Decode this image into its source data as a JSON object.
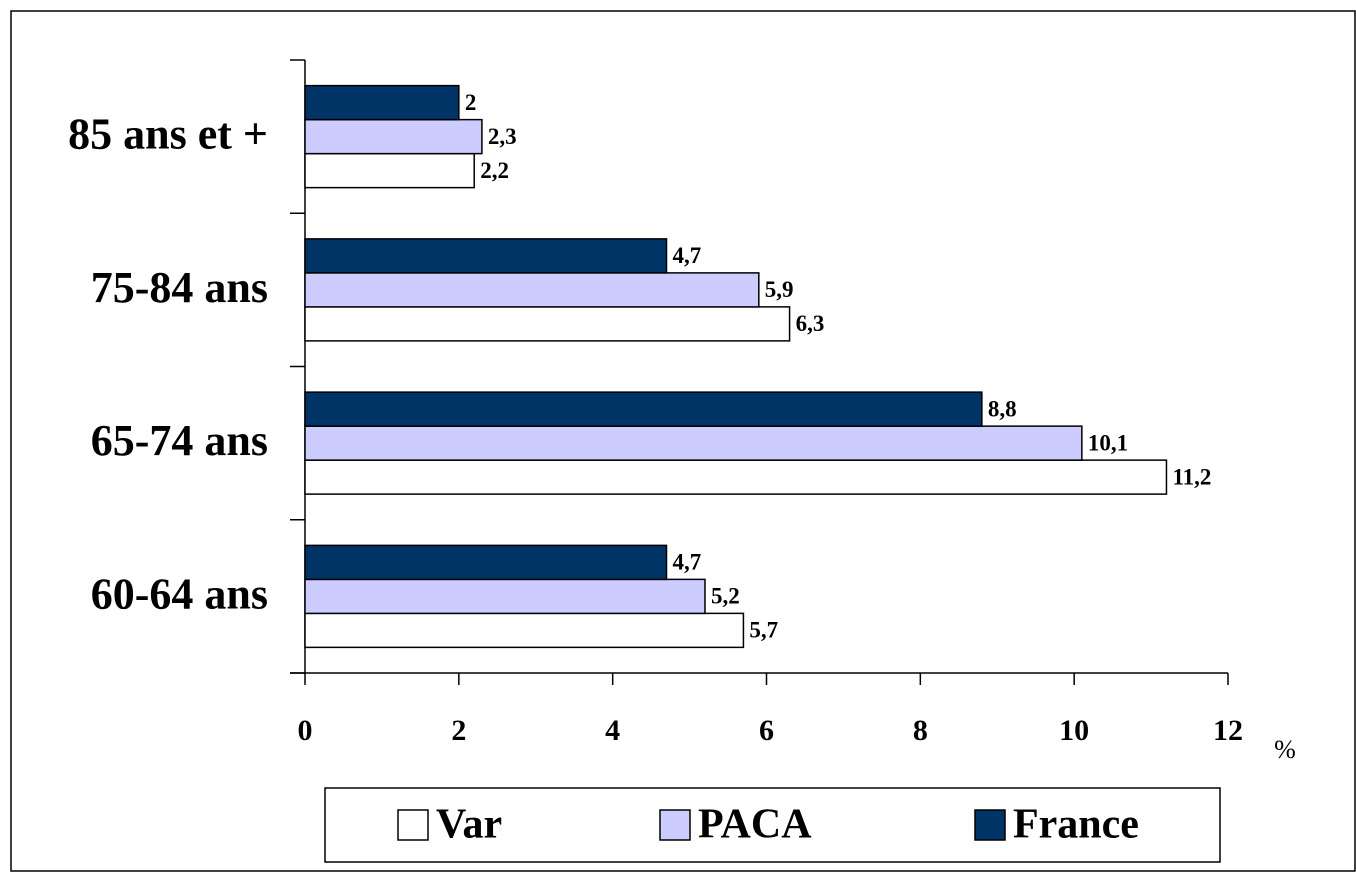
{
  "chart_data": {
    "type": "hbar",
    "categories": [
      "60-64 ans",
      "65-74 ans",
      "75-84 ans",
      "85 ans et +"
    ],
    "series": [
      {
        "name": "Var",
        "color": "#ffffff",
        "values": [
          5.7,
          11.2,
          6.3,
          2.2
        ],
        "value_labels": [
          "5,7",
          "11,2",
          "6,3",
          "2,2"
        ]
      },
      {
        "name": "PACA",
        "color": "#ccccff",
        "values": [
          5.2,
          10.1,
          5.9,
          2.3
        ],
        "value_labels": [
          "5,2",
          "10,1",
          "5,9",
          "2,3"
        ]
      },
      {
        "name": "France",
        "color": "#003366",
        "values": [
          4.7,
          8.8,
          4.7,
          2
        ],
        "value_labels": [
          "4,7",
          "8,8",
          "4,7",
          "2"
        ]
      }
    ],
    "xlabel": "%",
    "xlim": [
      0,
      12
    ],
    "xticks": [
      0,
      2,
      4,
      6,
      8,
      10,
      12
    ],
    "legend": "bottom"
  }
}
